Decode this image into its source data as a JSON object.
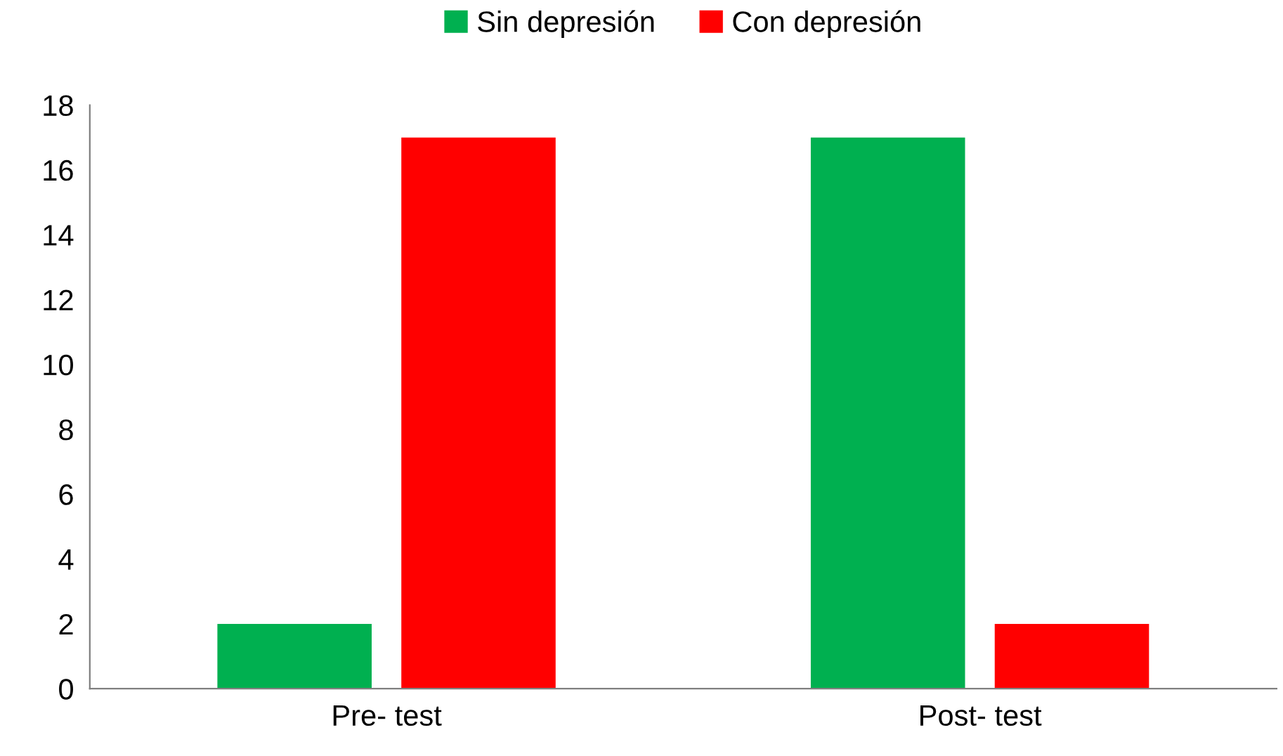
{
  "chart_data": {
    "type": "bar",
    "categories": [
      "Pre- test",
      "Post- test"
    ],
    "series": [
      {
        "name": "Sin depresión",
        "color": "#00b050",
        "values": [
          2,
          17
        ]
      },
      {
        "name": "Con depresión",
        "color": "#ff0000",
        "values": [
          17,
          2
        ]
      }
    ],
    "ylim": [
      0,
      18
    ],
    "yticks": [
      0,
      2,
      4,
      6,
      8,
      10,
      12,
      14,
      16,
      18
    ],
    "grid": false,
    "legend": "top"
  }
}
